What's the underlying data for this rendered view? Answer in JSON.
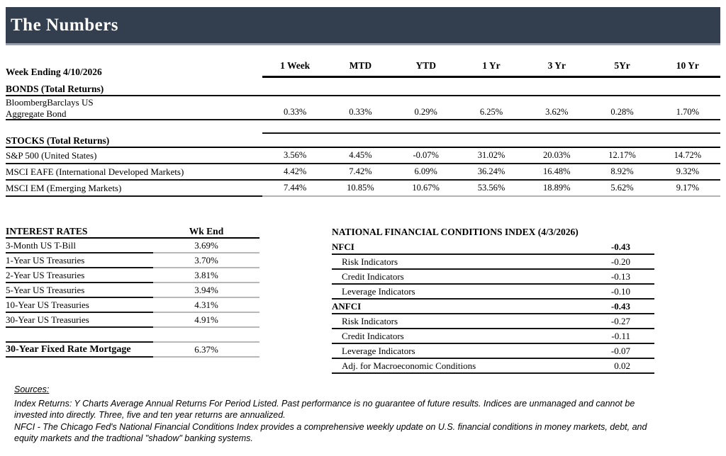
{
  "title": "The Numbers",
  "colors": {
    "header_bg": "#333e4e",
    "rule_dark": "#141414",
    "rule_light": "#b8b8b8"
  },
  "returns_table": {
    "week_label": "Week Ending 4/10/2026",
    "columns": [
      "1 Week",
      "MTD",
      "YTD",
      "1 Yr",
      "3 Yr",
      "5Yr",
      "10 Yr"
    ],
    "bonds_section": "BONDS (Total Returns)",
    "bond_rows": [
      {
        "label_lines": [
          "BloombergBarclays US",
          "Aggregate Bond"
        ],
        "values": [
          "0.33%",
          "0.33%",
          "0.29%",
          "6.25%",
          "3.62%",
          "0.28%",
          "1.70%"
        ]
      }
    ],
    "stocks_section": "STOCKS (Total Returns)",
    "stock_rows": [
      {
        "label": "S&P 500 (United States)",
        "values": [
          "3.56%",
          "4.45%",
          "-0.07%",
          "31.02%",
          "20.03%",
          "12.17%",
          "14.72%"
        ]
      },
      {
        "label": "MSCI EAFE (International Developed Markets)",
        "values": [
          "4.42%",
          "7.42%",
          "6.09%",
          "36.24%",
          "16.48%",
          "8.92%",
          "9.32%"
        ]
      },
      {
        "label": "MSCI EM (Emerging Markets)",
        "values": [
          "7.44%",
          "10.85%",
          "10.67%",
          "53.56%",
          "18.89%",
          "5.62%",
          "9.17%"
        ]
      }
    ]
  },
  "interest_rates": {
    "title": "INTEREST RATES",
    "col_header": "Wk End",
    "rows": [
      {
        "label": "3-Month US T-Bill",
        "value": "3.69%",
        "bold": false
      },
      {
        "label": "1-Year US Treasuries",
        "value": "3.70%",
        "bold": false
      },
      {
        "label": "2-Year US Treasuries",
        "value": "3.81%",
        "bold": false
      },
      {
        "label": "5-Year US Treasuries",
        "value": "3.94%",
        "bold": false
      },
      {
        "label": "10-Year US Treasuries",
        "value": "4.31%",
        "bold": false
      },
      {
        "label": "30-Year US Treasuries",
        "value": "4.91%",
        "bold": false
      },
      {
        "label": "",
        "value": "",
        "bold": false
      },
      {
        "label": "30-Year Fixed Rate Mortgage",
        "value": "6.37%",
        "bold": true
      }
    ]
  },
  "nfci": {
    "title": "NATIONAL FINANCIAL CONDITIONS INDEX (4/3/2026)",
    "rows": [
      {
        "label": "NFCI",
        "value": "-0.43",
        "bold": true,
        "indent": false
      },
      {
        "label": "Risk Indicators",
        "value": "-0.20",
        "bold": false,
        "indent": true
      },
      {
        "label": "Credit Indicators",
        "value": "-0.13",
        "bold": false,
        "indent": true
      },
      {
        "label": "Leverage Indicators",
        "value": "-0.10",
        "bold": false,
        "indent": true
      },
      {
        "label": "ANFCI",
        "value": "-0.43",
        "bold": true,
        "indent": false
      },
      {
        "label": "Risk Indicators",
        "value": "-0.27",
        "bold": false,
        "indent": true
      },
      {
        "label": "Credit Indicators",
        "value": "-0.11",
        "bold": false,
        "indent": true
      },
      {
        "label": "Leverage Indicators",
        "value": "-0.07",
        "bold": false,
        "indent": true
      },
      {
        "label": "Adj. for Macroeconomic Conditions",
        "value": "0.02",
        "bold": false,
        "indent": true
      }
    ]
  },
  "sources": {
    "heading": "Sources:",
    "lines": [
      "Index Returns:  Y Charts Average Annual Returns For Period Listed.  Past performance is no guarantee of future results.  Indices are unmanaged and cannot be",
      "invested into directly.  Three, five and ten year returns are annualized.",
      "NFCI - The Chicago Fed's National Financial Conditions Index provides a comprehensive weekly update on U.S. financial conditions in money markets, debt, and",
      "equity markets and the tradtional \"shadow\" banking systems."
    ]
  }
}
